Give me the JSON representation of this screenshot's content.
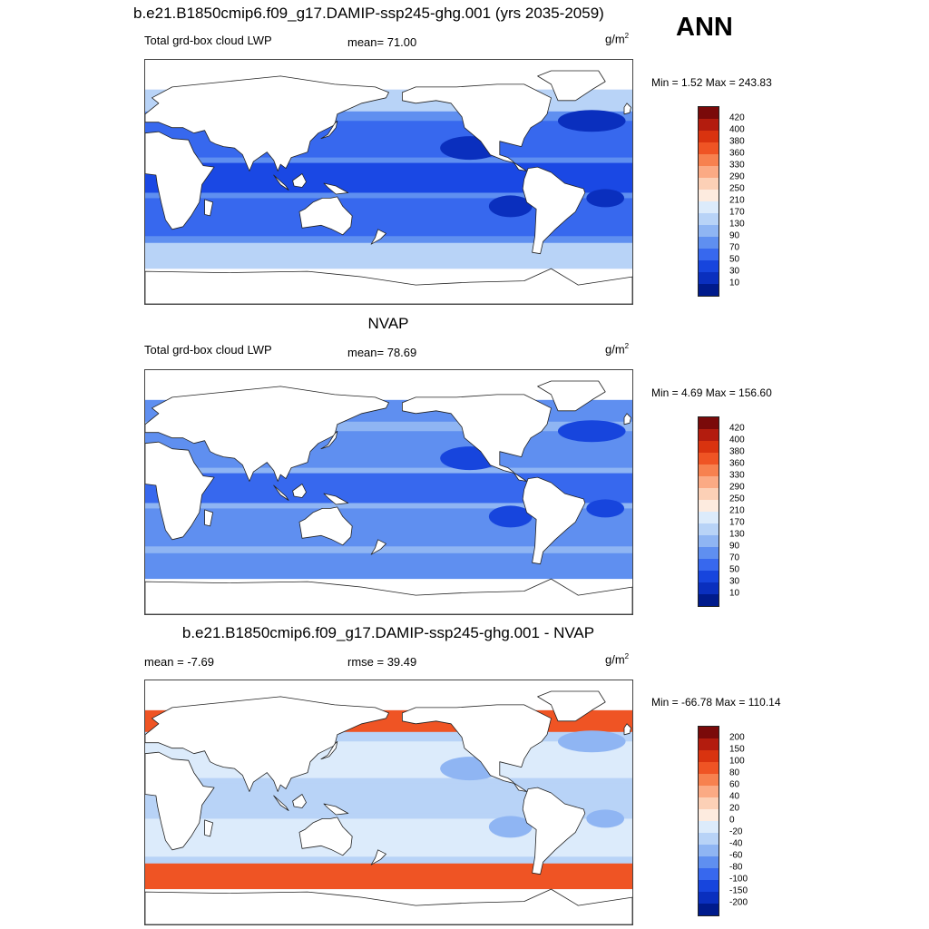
{
  "main_title": "b.e21.B1850cmip6.f09_g17.DAMIP-ssp245-ghg.001 (yrs 2035-2059)",
  "season": "ANN",
  "panels": [
    {
      "title": "",
      "left_label": "Total grd-box cloud LWP",
      "center_label": "mean=  71.00",
      "units": "g/m",
      "units_exp": "2",
      "minmax": "Min =   1.52 Max = 243.83",
      "colorbar": {
        "levels": [
          "420",
          "400",
          "380",
          "360",
          "330",
          "290",
          "250",
          "210",
          "170",
          "130",
          "90",
          "70",
          "50",
          "30",
          "10"
        ],
        "colors": [
          "#7a0a0a",
          "#b31c0e",
          "#d9330f",
          "#ef5424",
          "#f7814f",
          "#fbaa84",
          "#fcd0b6",
          "#fdebdf",
          "#dcebfb",
          "#b8d3f7",
          "#8fb5f3",
          "#5f8ff0",
          "#3768ee",
          "#1745dd",
          "#0a2fbe",
          "#001b8c"
        ]
      },
      "fields": [
        {
          "region": "tropical-ocean",
          "color": "#1a48e4"
        },
        {
          "region": "subtropical-ocean",
          "color": "#3768ee"
        },
        {
          "region": "midlatitude-ocean",
          "color": "#5f8ff0"
        },
        {
          "region": "storm-track",
          "color": "#b8d3f7"
        },
        {
          "region": "stratocumulus-deck",
          "color": "#0a2fbe"
        }
      ]
    },
    {
      "title": "NVAP",
      "left_label": "Total grd-box cloud LWP",
      "center_label": "mean=  78.69",
      "units": "g/m",
      "units_exp": "2",
      "minmax": "Min =   4.69 Max = 156.60",
      "colorbar": {
        "levels": [
          "420",
          "400",
          "380",
          "360",
          "330",
          "290",
          "250",
          "210",
          "170",
          "130",
          "90",
          "70",
          "50",
          "30",
          "10"
        ],
        "colors": [
          "#7a0a0a",
          "#b31c0e",
          "#d9330f",
          "#ef5424",
          "#f7814f",
          "#fbaa84",
          "#fcd0b6",
          "#fdebdf",
          "#dcebfb",
          "#b8d3f7",
          "#8fb5f3",
          "#5f8ff0",
          "#3768ee",
          "#1745dd",
          "#0a2fbe",
          "#001b8c"
        ]
      },
      "fields": [
        {
          "region": "tropical-ocean",
          "color": "#3768ee"
        },
        {
          "region": "subtropical-ocean",
          "color": "#5f8ff0"
        },
        {
          "region": "midlatitude-ocean",
          "color": "#8fb5f3"
        },
        {
          "region": "storm-track",
          "color": "#5f8ff0"
        },
        {
          "region": "stratocumulus-deck",
          "color": "#1745dd"
        }
      ]
    },
    {
      "title": "b.e21.B1850cmip6.f09_g17.DAMIP-ssp245-ghg.001 - NVAP",
      "left_label": "mean =  -7.69",
      "center_label": "rmse =  39.49",
      "units": "g/m",
      "units_exp": "2",
      "minmax": "Min = -66.78 Max = 110.14",
      "colorbar": {
        "levels": [
          "200",
          "150",
          "100",
          "80",
          "60",
          "40",
          "20",
          "0",
          "-20",
          "-40",
          "-60",
          "-80",
          "-100",
          "-150",
          "-200"
        ],
        "colors": [
          "#7a0a0a",
          "#b31c0e",
          "#d9330f",
          "#ef5424",
          "#f7814f",
          "#fbaa84",
          "#fcd0b6",
          "#fdebdf",
          "#dcebfb",
          "#b8d3f7",
          "#8fb5f3",
          "#5f8ff0",
          "#3768ee",
          "#1745dd",
          "#0a2fbe",
          "#001b8c"
        ]
      },
      "fields": [
        {
          "region": "tropical-ocean",
          "color": "#b8d3f7"
        },
        {
          "region": "subtropical-ocean",
          "color": "#dcebfb"
        },
        {
          "region": "midlatitude-ocean",
          "color": "#b8d3f7"
        },
        {
          "region": "storm-track",
          "color": "#ef5424"
        },
        {
          "region": "stratocumulus-deck",
          "color": "#8fb5f3"
        }
      ]
    }
  ]
}
